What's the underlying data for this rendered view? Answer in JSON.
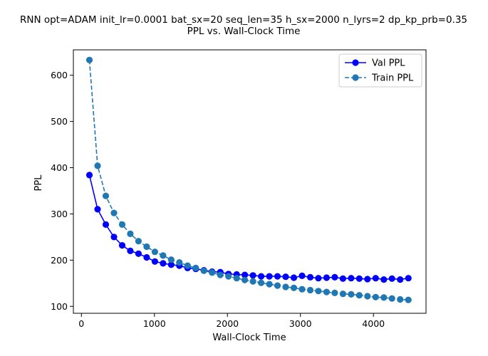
{
  "chart_data": {
    "type": "line",
    "title": "RNN opt=ADAM init_lr=0.0001 bat_sx=20 seq_len=35 h_sx=2000 n_lyrs=2 dp_kp_prb=0.35",
    "subtitle": "PPL vs. Wall-Clock Time",
    "xlabel": "Wall-Clock Time",
    "ylabel": "PPL",
    "xlim": [
      -110,
      4720
    ],
    "ylim": [
      85,
      655
    ],
    "xticks": [
      0,
      1000,
      2000,
      3000,
      4000
    ],
    "yticks": [
      100,
      200,
      300,
      400,
      500,
      600
    ],
    "grid": false,
    "legend_position": "top-right",
    "x": [
      110,
      222,
      334,
      446,
      558,
      670,
      782,
      894,
      1006,
      1118,
      1230,
      1342,
      1454,
      1566,
      1678,
      1790,
      1902,
      2014,
      2126,
      2238,
      2350,
      2462,
      2574,
      2686,
      2798,
      2910,
      3022,
      3134,
      3246,
      3358,
      3470,
      3582,
      3694,
      3806,
      3918,
      4030,
      4142,
      4254,
      4366,
      4478
    ],
    "series": [
      {
        "name": "Val PPL",
        "color": "#0000ff",
        "linestyle": "solid",
        "marker": "circle",
        "values": [
          384,
          310,
          277,
          250,
          232,
          220,
          214,
          206,
          197,
          193,
          190,
          188,
          183,
          181,
          178,
          175,
          174,
          170,
          169,
          168,
          167,
          165,
          165,
          165,
          164,
          162,
          166,
          163,
          161,
          162,
          163,
          160,
          161,
          160,
          159,
          161,
          158,
          160,
          158,
          161
        ]
      },
      {
        "name": "Train PPL",
        "color": "#1f77b4",
        "linestyle": "dashed",
        "marker": "circle",
        "values": [
          633,
          404,
          339,
          302,
          277,
          257,
          241,
          229,
          218,
          210,
          201,
          195,
          188,
          183,
          177,
          173,
          168,
          165,
          161,
          157,
          154,
          151,
          148,
          145,
          142,
          140,
          137,
          135,
          133,
          131,
          129,
          127,
          126,
          124,
          122,
          120,
          119,
          117,
          115,
          114
        ]
      }
    ]
  }
}
